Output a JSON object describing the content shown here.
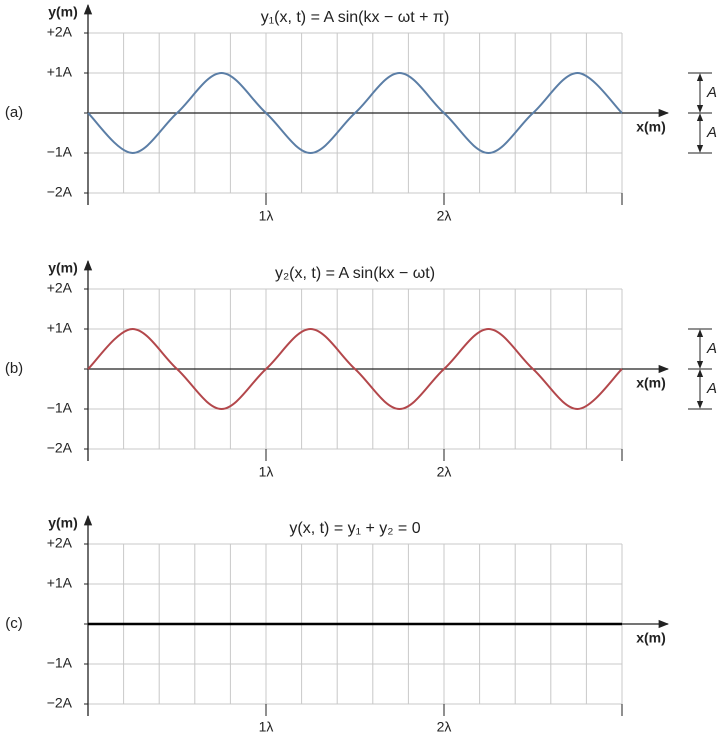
{
  "chart_data": [
    {
      "type": "line",
      "panel_label": "(a)",
      "title": "y₁(x, t) = A sin(kx − ωt + π)",
      "x_label": "x(m)",
      "y_label": "y(m)",
      "x": [
        0,
        0.25,
        0.5,
        0.75,
        1,
        1.25,
        1.5,
        1.75,
        2,
        2.25,
        2.5,
        2.75,
        3
      ],
      "values": [
        0,
        -1,
        0,
        1,
        0,
        -1,
        0,
        1,
        0,
        -1,
        0,
        1,
        0
      ],
      "color": "#5b7ea6",
      "xlim": [
        0,
        3
      ],
      "xticks": [
        {
          "value": 1,
          "label": "1λ"
        },
        {
          "value": 2,
          "label": "2λ"
        }
      ],
      "xgrid": [
        0.2,
        0.4,
        0.6,
        0.8,
        1,
        1.2,
        1.4,
        1.6,
        1.8,
        2,
        2.2,
        2.4,
        2.6,
        2.8,
        3
      ],
      "ylim": [
        -2,
        2
      ],
      "yticks": [
        {
          "value": 2,
          "label": "+2A"
        },
        {
          "value": 1,
          "label": "+1A"
        },
        {
          "value": 0,
          "label": null
        },
        {
          "value": -1,
          "label": "−1A"
        },
        {
          "value": -2,
          "label": "−2A"
        }
      ],
      "grid": true,
      "annotations": [
        "A",
        "A"
      ]
    },
    {
      "type": "line",
      "panel_label": "(b)",
      "title": "y₂(x, t) = A sin(kx − ωt)",
      "x_label": "x(m)",
      "y_label": "y(m)",
      "x": [
        0,
        0.25,
        0.5,
        0.75,
        1,
        1.25,
        1.5,
        1.75,
        2,
        2.25,
        2.5,
        2.75,
        3
      ],
      "values": [
        0,
        1,
        0,
        -1,
        0,
        1,
        0,
        -1,
        0,
        1,
        0,
        -1,
        0
      ],
      "color": "#b3474b",
      "xlim": [
        0,
        3
      ],
      "xticks": [
        {
          "value": 1,
          "label": "1λ"
        },
        {
          "value": 2,
          "label": "2λ"
        }
      ],
      "xgrid": [
        0.2,
        0.4,
        0.6,
        0.8,
        1,
        1.2,
        1.4,
        1.6,
        1.8,
        2,
        2.2,
        2.4,
        2.6,
        2.8,
        3
      ],
      "ylim": [
        -2,
        2
      ],
      "yticks": [
        {
          "value": 2,
          "label": "+2A"
        },
        {
          "value": 1,
          "label": "+1A"
        },
        {
          "value": 0,
          "label": null
        },
        {
          "value": -1,
          "label": "−1A"
        },
        {
          "value": -2,
          "label": "−2A"
        }
      ],
      "grid": true,
      "annotations": [
        "A",
        "A"
      ]
    },
    {
      "type": "line",
      "panel_label": "(c)",
      "title": "y(x, t) = y₁ + y₂ = 0",
      "x_label": "x(m)",
      "y_label": "y(m)",
      "x": [
        0,
        0.25,
        0.5,
        0.75,
        1,
        1.25,
        1.5,
        1.75,
        2,
        2.25,
        2.5,
        2.75,
        3
      ],
      "values": [
        0,
        0,
        0,
        0,
        0,
        0,
        0,
        0,
        0,
        0,
        0,
        0,
        0
      ],
      "color": "#000000",
      "xlim": [
        0,
        3
      ],
      "xticks": [
        {
          "value": 1,
          "label": "1λ"
        },
        {
          "value": 2,
          "label": "2λ"
        }
      ],
      "xgrid": [
        0.2,
        0.4,
        0.6,
        0.8,
        1,
        1.2,
        1.4,
        1.6,
        1.8,
        2,
        2.2,
        2.4,
        2.6,
        2.8,
        3
      ],
      "ylim": [
        -2,
        2
      ],
      "yticks": [
        {
          "value": 2,
          "label": "+2A"
        },
        {
          "value": 1,
          "label": "+1A"
        },
        {
          "value": 0,
          "label": null
        },
        {
          "value": -1,
          "label": "−1A"
        },
        {
          "value": -2,
          "label": "−2A"
        }
      ],
      "grid": true
    }
  ]
}
